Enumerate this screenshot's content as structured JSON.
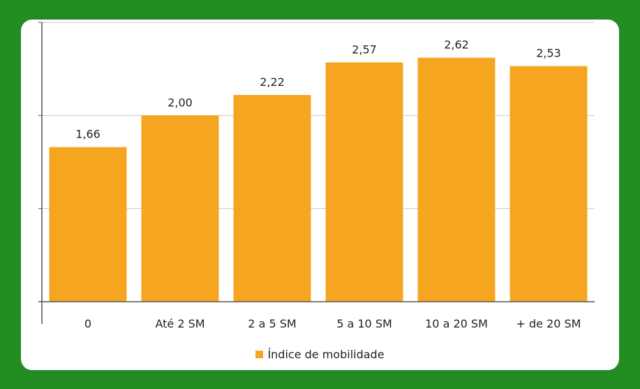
{
  "colors": {
    "background": "#228b22",
    "card": "#ffffff",
    "bar": "#f5a51f",
    "grid": "#c8c8c8",
    "axis": "#555555",
    "text": "#222222"
  },
  "chart_data": {
    "type": "bar",
    "categories": [
      "0",
      "Até 2 SM",
      "2 a 5 SM",
      "5 a 10 SM",
      "10 a 20 SM",
      "+ de 20 SM"
    ],
    "series": [
      {
        "name": "Índice de mobilidade",
        "values": [
          1.66,
          2.0,
          2.22,
          2.57,
          2.62,
          2.53
        ],
        "labels": [
          "1,66",
          "2,00",
          "2,22",
          "2,57",
          "2,62",
          "2,53"
        ]
      }
    ],
    "ylim": [
      0,
      3
    ],
    "y_gridlines": [
      1,
      2,
      3
    ],
    "grid": true,
    "legend_position": "bottom-center"
  }
}
